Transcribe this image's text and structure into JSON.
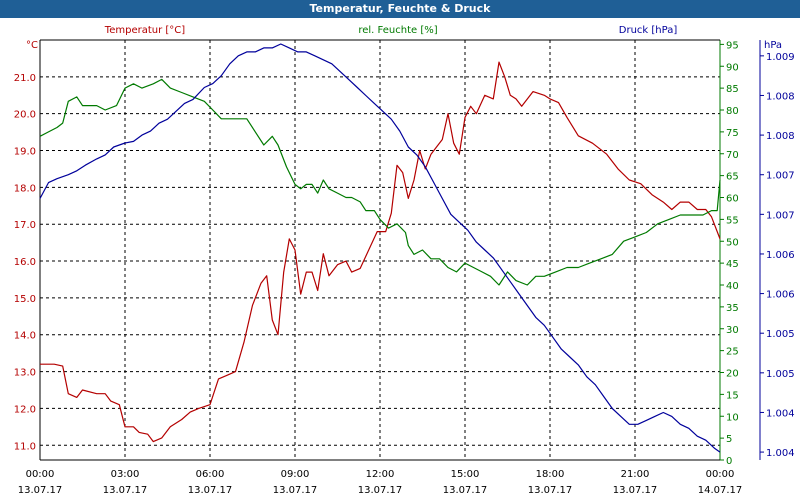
{
  "window": {
    "title": "Temperatur, Feuchte & Druck"
  },
  "colors": {
    "temperature": "#b40000",
    "humidity": "#007a00",
    "pressure": "#00009b",
    "titlebar": "#1f5f96"
  },
  "chart_data": {
    "type": "line",
    "title": "Temperatur, Feuchte & Druck",
    "grid": true,
    "x_ticks": [
      {
        "time": "00:00",
        "date": "13.07.17"
      },
      {
        "time": "03:00",
        "date": "13.07.17"
      },
      {
        "time": "06:00",
        "date": "13.07.17"
      },
      {
        "time": "09:00",
        "date": "13.07.17"
      },
      {
        "time": "12:00",
        "date": "13.07.17"
      },
      {
        "time": "15:00",
        "date": "13.07.17"
      },
      {
        "time": "18:00",
        "date": "13.07.17"
      },
      {
        "time": "21:00",
        "date": "13.07.17"
      },
      {
        "time": "00:00",
        "date": "14.07.17"
      }
    ],
    "x_unit": "hours",
    "xlim": [
      0,
      24
    ],
    "axes": {
      "temperature": {
        "label": "Temperatur [°C]",
        "unit": "°C",
        "lim": [
          10.6,
          22.0
        ],
        "ticks": [
          "11.0",
          "12.0",
          "13.0",
          "14.0",
          "15.0",
          "16.0",
          "17.0",
          "18.0",
          "19.0",
          "20.0",
          "21.0"
        ]
      },
      "humidity": {
        "label": "rel. Feuchte [%]",
        "unit": "%",
        "lim": [
          0,
          96
        ],
        "ticks": [
          "0",
          "5",
          "10",
          "15",
          "20",
          "25",
          "30",
          "35",
          "40",
          "45",
          "50",
          "55",
          "60",
          "65",
          "70",
          "75",
          "80",
          "85",
          "90",
          "95"
        ]
      },
      "pressure": {
        "label": "Druck [hPa]",
        "unit": "hPa",
        "lim": [
          1003.9,
          1009.2
        ],
        "ticks": [
          {
            "v": 1004.0,
            "t": "1.004"
          },
          {
            "v": 1004.5,
            "t": "1.004"
          },
          {
            "v": 1005.0,
            "t": "1.005"
          },
          {
            "v": 1005.5,
            "t": "1.005"
          },
          {
            "v": 1006.0,
            "t": "1.006"
          },
          {
            "v": 1006.5,
            "t": "1.006"
          },
          {
            "v": 1007.0,
            "t": "1.007"
          },
          {
            "v": 1007.5,
            "t": "1.007"
          },
          {
            "v": 1008.0,
            "t": "1.008"
          },
          {
            "v": 1008.5,
            "t": "1.008"
          },
          {
            "v": 1009.0,
            "t": "1.009"
          },
          {
            "v": 1009.5,
            "t": "1.009"
          }
        ]
      }
    },
    "series": [
      {
        "name": "Temperatur [°C]",
        "axis": "temperature",
        "points": [
          [
            0,
            13.2
          ],
          [
            0.5,
            13.2
          ],
          [
            0.8,
            13.15
          ],
          [
            1.0,
            12.4
          ],
          [
            1.3,
            12.3
          ],
          [
            1.5,
            12.5
          ],
          [
            2.0,
            12.4
          ],
          [
            2.3,
            12.4
          ],
          [
            2.5,
            12.2
          ],
          [
            2.8,
            12.1
          ],
          [
            3.0,
            11.5
          ],
          [
            3.3,
            11.5
          ],
          [
            3.5,
            11.35
          ],
          [
            3.8,
            11.3
          ],
          [
            4.0,
            11.1
          ],
          [
            4.3,
            11.2
          ],
          [
            4.6,
            11.5
          ],
          [
            5.0,
            11.7
          ],
          [
            5.3,
            11.9
          ],
          [
            5.6,
            12.0
          ],
          [
            6.0,
            12.1
          ],
          [
            6.3,
            12.8
          ],
          [
            6.6,
            12.9
          ],
          [
            6.9,
            13.0
          ],
          [
            7.2,
            13.8
          ],
          [
            7.5,
            14.8
          ],
          [
            7.8,
            15.4
          ],
          [
            8.0,
            15.6
          ],
          [
            8.2,
            14.4
          ],
          [
            8.4,
            14.0
          ],
          [
            8.6,
            15.7
          ],
          [
            8.8,
            16.6
          ],
          [
            9.0,
            16.3
          ],
          [
            9.2,
            15.1
          ],
          [
            9.4,
            15.7
          ],
          [
            9.6,
            15.7
          ],
          [
            9.8,
            15.2
          ],
          [
            10.0,
            16.2
          ],
          [
            10.2,
            15.6
          ],
          [
            10.5,
            15.9
          ],
          [
            10.8,
            16.0
          ],
          [
            11.0,
            15.7
          ],
          [
            11.3,
            15.8
          ],
          [
            11.6,
            16.3
          ],
          [
            11.9,
            16.8
          ],
          [
            12.2,
            16.8
          ],
          [
            12.4,
            17.3
          ],
          [
            12.6,
            18.6
          ],
          [
            12.8,
            18.4
          ],
          [
            13.0,
            17.7
          ],
          [
            13.2,
            18.2
          ],
          [
            13.4,
            19.0
          ],
          [
            13.6,
            18.5
          ],
          [
            13.8,
            18.9
          ],
          [
            14.0,
            19.1
          ],
          [
            14.2,
            19.3
          ],
          [
            14.4,
            20.0
          ],
          [
            14.6,
            19.2
          ],
          [
            14.8,
            18.9
          ],
          [
            15.0,
            19.9
          ],
          [
            15.2,
            20.2
          ],
          [
            15.4,
            20.0
          ],
          [
            15.7,
            20.5
          ],
          [
            16.0,
            20.4
          ],
          [
            16.2,
            21.4
          ],
          [
            16.4,
            21.0
          ],
          [
            16.6,
            20.5
          ],
          [
            16.8,
            20.4
          ],
          [
            17.0,
            20.2
          ],
          [
            17.4,
            20.6
          ],
          [
            17.8,
            20.5
          ],
          [
            18.0,
            20.4
          ],
          [
            18.3,
            20.3
          ],
          [
            18.6,
            19.9
          ],
          [
            19.0,
            19.4
          ],
          [
            19.5,
            19.2
          ],
          [
            20.0,
            18.9
          ],
          [
            20.4,
            18.5
          ],
          [
            20.8,
            18.2
          ],
          [
            21.2,
            18.1
          ],
          [
            21.6,
            17.8
          ],
          [
            22.0,
            17.6
          ],
          [
            22.3,
            17.4
          ],
          [
            22.6,
            17.6
          ],
          [
            22.9,
            17.6
          ],
          [
            23.2,
            17.4
          ],
          [
            23.5,
            17.4
          ],
          [
            23.7,
            17.2
          ],
          [
            23.9,
            16.8
          ],
          [
            24.0,
            16.6
          ]
        ]
      },
      {
        "name": "rel. Feuchte [%]",
        "axis": "humidity",
        "points": [
          [
            0,
            74
          ],
          [
            0.3,
            75
          ],
          [
            0.6,
            76
          ],
          [
            0.8,
            77
          ],
          [
            1.0,
            82
          ],
          [
            1.3,
            83
          ],
          [
            1.5,
            81
          ],
          [
            2.0,
            81
          ],
          [
            2.3,
            80
          ],
          [
            2.7,
            81
          ],
          [
            3.0,
            85
          ],
          [
            3.3,
            86
          ],
          [
            3.6,
            85
          ],
          [
            4.0,
            86
          ],
          [
            4.3,
            87
          ],
          [
            4.6,
            85
          ],
          [
            5.0,
            84
          ],
          [
            5.4,
            83
          ],
          [
            5.8,
            82
          ],
          [
            6.1,
            80
          ],
          [
            6.4,
            78
          ],
          [
            6.7,
            78
          ],
          [
            7.0,
            78
          ],
          [
            7.3,
            78
          ],
          [
            7.6,
            75
          ],
          [
            7.9,
            72
          ],
          [
            8.2,
            74
          ],
          [
            8.4,
            72
          ],
          [
            8.7,
            67
          ],
          [
            9.0,
            63
          ],
          [
            9.2,
            62
          ],
          [
            9.4,
            63
          ],
          [
            9.6,
            63
          ],
          [
            9.8,
            61
          ],
          [
            10.0,
            64
          ],
          [
            10.2,
            62
          ],
          [
            10.5,
            61
          ],
          [
            10.8,
            60
          ],
          [
            11.0,
            60
          ],
          [
            11.3,
            59
          ],
          [
            11.5,
            57
          ],
          [
            11.8,
            57
          ],
          [
            12.0,
            55
          ],
          [
            12.3,
            53
          ],
          [
            12.6,
            54
          ],
          [
            12.9,
            52
          ],
          [
            13.0,
            49
          ],
          [
            13.2,
            47
          ],
          [
            13.5,
            48
          ],
          [
            13.8,
            46
          ],
          [
            14.1,
            46
          ],
          [
            14.4,
            44
          ],
          [
            14.7,
            43
          ],
          [
            15.0,
            45
          ],
          [
            15.3,
            44
          ],
          [
            15.6,
            43
          ],
          [
            15.9,
            42
          ],
          [
            16.2,
            40
          ],
          [
            16.5,
            43
          ],
          [
            16.8,
            41
          ],
          [
            17.2,
            40
          ],
          [
            17.5,
            42
          ],
          [
            17.8,
            42
          ],
          [
            18.2,
            43
          ],
          [
            18.6,
            44
          ],
          [
            19.0,
            44
          ],
          [
            19.4,
            45
          ],
          [
            19.8,
            46
          ],
          [
            20.2,
            47
          ],
          [
            20.6,
            50
          ],
          [
            21.0,
            51
          ],
          [
            21.4,
            52
          ],
          [
            21.8,
            54
          ],
          [
            22.2,
            55
          ],
          [
            22.6,
            56
          ],
          [
            23.0,
            56
          ],
          [
            23.4,
            56
          ],
          [
            23.7,
            57
          ],
          [
            23.9,
            57
          ],
          [
            24.0,
            64
          ]
        ]
      },
      {
        "name": "Druck [hPa]",
        "axis": "pressure",
        "points": [
          [
            0,
            1007.2
          ],
          [
            0.3,
            1007.4
          ],
          [
            0.6,
            1007.45
          ],
          [
            1.0,
            1007.5
          ],
          [
            1.3,
            1007.55
          ],
          [
            1.6,
            1007.62
          ],
          [
            2.0,
            1007.7
          ],
          [
            2.3,
            1007.75
          ],
          [
            2.6,
            1007.85
          ],
          [
            3.0,
            1007.9
          ],
          [
            3.3,
            1007.92
          ],
          [
            3.6,
            1008.0
          ],
          [
            3.9,
            1008.05
          ],
          [
            4.2,
            1008.15
          ],
          [
            4.5,
            1008.2
          ],
          [
            4.8,
            1008.3
          ],
          [
            5.1,
            1008.4
          ],
          [
            5.4,
            1008.45
          ],
          [
            5.8,
            1008.6
          ],
          [
            6.1,
            1008.65
          ],
          [
            6.4,
            1008.75
          ],
          [
            6.7,
            1008.9
          ],
          [
            7.0,
            1009.0
          ],
          [
            7.3,
            1009.05
          ],
          [
            7.6,
            1009.05
          ],
          [
            7.9,
            1009.1
          ],
          [
            8.2,
            1009.1
          ],
          [
            8.5,
            1009.15
          ],
          [
            8.8,
            1009.1
          ],
          [
            9.1,
            1009.05
          ],
          [
            9.4,
            1009.05
          ],
          [
            9.7,
            1009.0
          ],
          [
            10.0,
            1008.95
          ],
          [
            10.3,
            1008.9
          ],
          [
            10.6,
            1008.8
          ],
          [
            10.9,
            1008.7
          ],
          [
            11.2,
            1008.6
          ],
          [
            11.5,
            1008.5
          ],
          [
            11.8,
            1008.4
          ],
          [
            12.1,
            1008.3
          ],
          [
            12.4,
            1008.2
          ],
          [
            12.7,
            1008.05
          ],
          [
            13.0,
            1007.85
          ],
          [
            13.3,
            1007.75
          ],
          [
            13.6,
            1007.6
          ],
          [
            13.9,
            1007.4
          ],
          [
            14.2,
            1007.2
          ],
          [
            14.5,
            1007.0
          ],
          [
            14.8,
            1006.9
          ],
          [
            15.1,
            1006.8
          ],
          [
            15.4,
            1006.65
          ],
          [
            15.7,
            1006.55
          ],
          [
            16.0,
            1006.45
          ],
          [
            16.3,
            1006.3
          ],
          [
            16.6,
            1006.15
          ],
          [
            16.9,
            1006.0
          ],
          [
            17.2,
            1005.85
          ],
          [
            17.5,
            1005.7
          ],
          [
            17.8,
            1005.6
          ],
          [
            18.1,
            1005.45
          ],
          [
            18.4,
            1005.3
          ],
          [
            18.7,
            1005.2
          ],
          [
            19.0,
            1005.1
          ],
          [
            19.3,
            1004.95
          ],
          [
            19.6,
            1004.85
          ],
          [
            19.9,
            1004.7
          ],
          [
            20.2,
            1004.55
          ],
          [
            20.5,
            1004.45
          ],
          [
            20.8,
            1004.35
          ],
          [
            21.1,
            1004.35
          ],
          [
            21.4,
            1004.4
          ],
          [
            21.7,
            1004.45
          ],
          [
            22.0,
            1004.5
          ],
          [
            22.3,
            1004.45
          ],
          [
            22.6,
            1004.35
          ],
          [
            22.9,
            1004.3
          ],
          [
            23.2,
            1004.2
          ],
          [
            23.5,
            1004.15
          ],
          [
            23.8,
            1004.05
          ],
          [
            24.0,
            1004.0
          ]
        ]
      }
    ]
  }
}
